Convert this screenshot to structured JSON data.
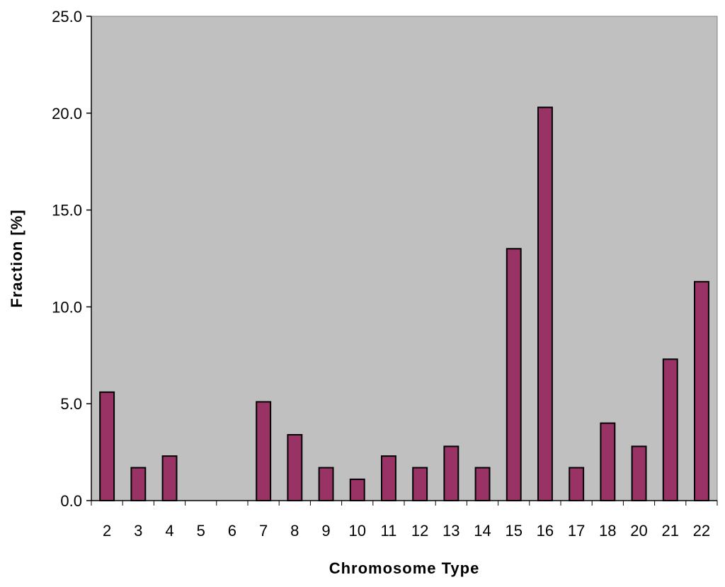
{
  "chart_data": {
    "type": "bar",
    "title": "",
    "xlabel": "Chromosome Type",
    "ylabel": "Fraction [%]",
    "ylim": [
      0,
      25
    ],
    "yticks": [
      "0.0",
      "5.0",
      "10.0",
      "15.0",
      "20.0",
      "25.0"
    ],
    "grid": false,
    "categories": [
      "2",
      "3",
      "4",
      "5",
      "6",
      "7",
      "8",
      "9",
      "10",
      "11",
      "12",
      "13",
      "14",
      "15",
      "16",
      "17",
      "18",
      "20",
      "21",
      "22"
    ],
    "values": [
      5.6,
      1.7,
      2.3,
      0.0,
      0.0,
      5.1,
      3.4,
      1.7,
      1.1,
      2.3,
      1.7,
      2.8,
      1.7,
      13.0,
      20.3,
      1.7,
      4.0,
      2.8,
      7.3,
      11.3
    ],
    "colors": {
      "bar_fill": "#993366",
      "bar_stroke": "#000000",
      "plot_background": "#c0c0c0"
    }
  }
}
